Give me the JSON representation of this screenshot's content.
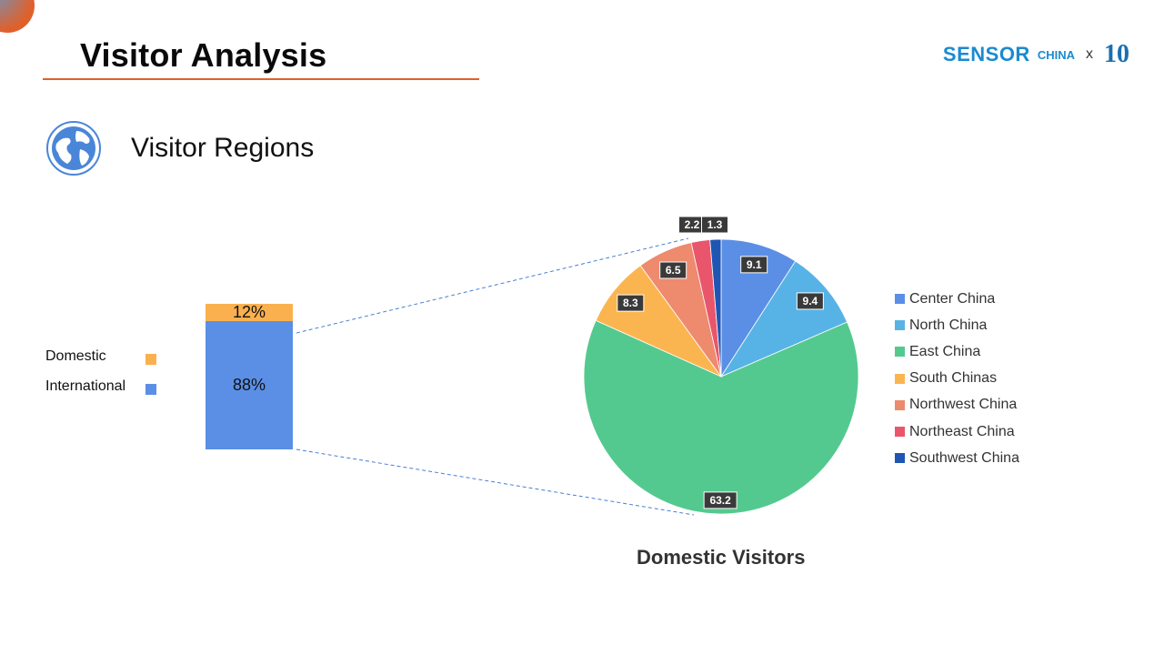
{
  "header": {
    "title": "Visitor Analysis",
    "logo": {
      "brand": "SENSOR",
      "brand_suffix": "CHINA",
      "separator": "x",
      "anniversary": "10",
      "accent_color": "#1a8bd0"
    }
  },
  "section": {
    "title": "Visitor Regions",
    "icon": "globe-icon"
  },
  "chart_data": [
    {
      "type": "bar",
      "stacked": true,
      "categories": [
        ""
      ],
      "series": [
        {
          "name": "International",
          "values": [
            88
          ],
          "label": "88%",
          "color": "#5b8fe6"
        },
        {
          "name": "Domestic",
          "values": [
            12
          ],
          "label": "12%",
          "color": "#fbb04f"
        }
      ],
      "legend": [
        "Domestic",
        "International"
      ],
      "legend_position": "left"
    },
    {
      "type": "pie",
      "title": "Domestic Visitors",
      "slices": [
        {
          "name": "Center China",
          "value": 9.1,
          "label": "9.1",
          "color": "#5b8fe6"
        },
        {
          "name": "North China",
          "value": 9.4,
          "label": "9.4",
          "color": "#57b3e6"
        },
        {
          "name": "East China",
          "value": 63.2,
          "label": "63.2",
          "color": "#54c98f"
        },
        {
          "name": "South Chinas",
          "value": 8.3,
          "label": "8.3",
          "color": "#fbb550"
        },
        {
          "name": "Northwest China",
          "value": 6.5,
          "label": "6.5",
          "color": "#ee8a6e"
        },
        {
          "name": "Northeast China",
          "value": 2.2,
          "label": "2.2",
          "color": "#e9566c"
        },
        {
          "name": "Southwest China",
          "value": 1.3,
          "label": "1.3",
          "color": "#1f56b3"
        }
      ],
      "legend_position": "right"
    }
  ],
  "colors": {
    "accent": "#e0602a",
    "connector": "#4a7fd0"
  }
}
